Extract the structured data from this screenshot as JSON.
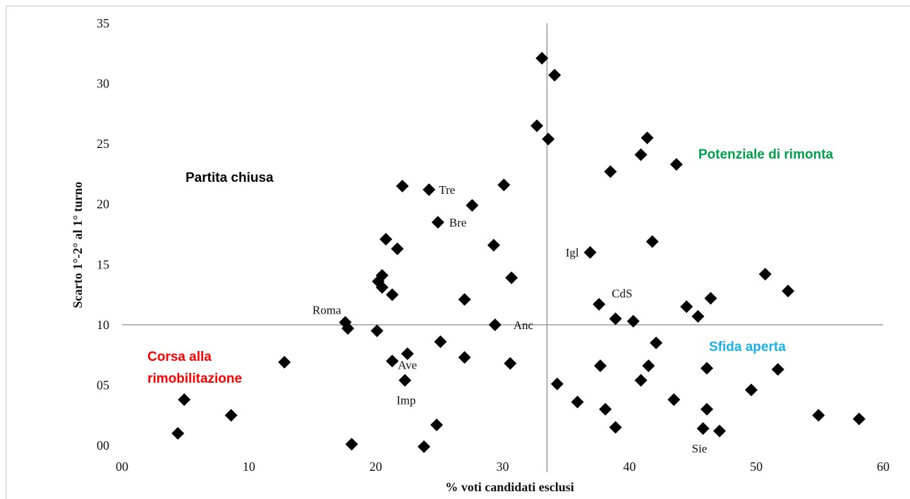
{
  "chart_data": {
    "type": "scatter",
    "xlabel": "% voti candidati esclusi",
    "ylabel": "Scarto 1°-2° al 1° turno",
    "xlim": [
      0,
      60
    ],
    "ylim": [
      0,
      35
    ],
    "x_ticks": [
      "00",
      "10",
      "20",
      "30",
      "40",
      "50",
      "60"
    ],
    "y_ticks": [
      "00",
      "05",
      "10",
      "15",
      "20",
      "25",
      "30",
      "35"
    ],
    "reference_lines": {
      "x": 33.5,
      "y": 10
    },
    "marker": {
      "shape": "diamond",
      "color": "#000000"
    },
    "quadrant_labels": [
      {
        "text": "Partita chiusa",
        "color": "#000000",
        "position": "top-left"
      },
      {
        "text": "Potenziale di rimonta",
        "color": "#00a04a",
        "position": "top-right"
      },
      {
        "text": "Corsa alla",
        "color": "#ff0000",
        "position": "bottom-left"
      },
      {
        "text": "rimobilitazione",
        "color": "#ff0000",
        "position": "bottom-left"
      },
      {
        "text": "Sfida aperta",
        "color": "#1ab0e8",
        "position": "bottom-right"
      }
    ],
    "points": [
      {
        "x": 4.4,
        "y": 1.0
      },
      {
        "x": 4.9,
        "y": 3.8
      },
      {
        "x": 8.6,
        "y": 2.5
      },
      {
        "x": 12.8,
        "y": 6.9
      },
      {
        "x": 17.6,
        "y": 10.2,
        "label": "Roma"
      },
      {
        "x": 17.8,
        "y": 9.7
      },
      {
        "x": 18.1,
        "y": 0.1
      },
      {
        "x": 20.1,
        "y": 9.5
      },
      {
        "x": 20.2,
        "y": 13.6
      },
      {
        "x": 20.5,
        "y": 13.1
      },
      {
        "x": 20.5,
        "y": 14.1
      },
      {
        "x": 20.8,
        "y": 17.1
      },
      {
        "x": 21.3,
        "y": 12.5
      },
      {
        "x": 21.3,
        "y": 7.0
      },
      {
        "x": 21.7,
        "y": 16.3
      },
      {
        "x": 22.1,
        "y": 21.5
      },
      {
        "x": 22.3,
        "y": 5.4,
        "label": "Ave"
      },
      {
        "x": 22.5,
        "y": 7.6
      },
      {
        "x": 23.8,
        "y": -0.1
      },
      {
        "x": 24.2,
        "y": 21.2,
        "label": "Tre"
      },
      {
        "x": 24.8,
        "y": 1.7
      },
      {
        "x": 24.9,
        "y": 18.5,
        "label": "Bre"
      },
      {
        "x": 25.1,
        "y": 8.6
      },
      {
        "x": 27.0,
        "y": 12.1
      },
      {
        "x": 27.0,
        "y": 7.3
      },
      {
        "x": 27.6,
        "y": 19.9
      },
      {
        "x": 29.3,
        "y": 16.6
      },
      {
        "x": 29.4,
        "y": 10.0
      },
      {
        "x": 30.1,
        "y": 21.6
      },
      {
        "x": 30.6,
        "y": 6.8
      },
      {
        "x": 30.7,
        "y": 13.9
      },
      {
        "x": 32.7,
        "y": 26.5
      },
      {
        "x": 33.1,
        "y": 32.1
      },
      {
        "x": 33.6,
        "y": 25.4
      },
      {
        "x": 34.1,
        "y": 30.7
      },
      {
        "x": 34.3,
        "y": 5.1
      },
      {
        "x": 35.9,
        "y": 3.6
      },
      {
        "x": 36.9,
        "y": 16.0,
        "label": "Igl"
      },
      {
        "x": 37.6,
        "y": 11.7
      },
      {
        "x": 37.7,
        "y": 6.6
      },
      {
        "x": 38.1,
        "y": 3.0
      },
      {
        "x": 38.5,
        "y": 22.7
      },
      {
        "x": 38.9,
        "y": 10.5
      },
      {
        "x": 38.9,
        "y": 1.5
      },
      {
        "x": 40.3,
        "y": 10.3
      },
      {
        "x": 40.9,
        "y": 24.1
      },
      {
        "x": 40.9,
        "y": 5.4
      },
      {
        "x": 41.4,
        "y": 25.5
      },
      {
        "x": 41.5,
        "y": 6.6
      },
      {
        "x": 41.8,
        "y": 16.9
      },
      {
        "x": 42.1,
        "y": 8.5
      },
      {
        "x": 43.5,
        "y": 3.8
      },
      {
        "x": 43.7,
        "y": 23.3
      },
      {
        "x": 44.5,
        "y": 11.5
      },
      {
        "x": 45.4,
        "y": 10.7
      },
      {
        "x": 45.8,
        "y": 1.4,
        "label": "Sie"
      },
      {
        "x": 46.1,
        "y": 6.4
      },
      {
        "x": 46.1,
        "y": 3.0
      },
      {
        "x": 46.4,
        "y": 12.2
      },
      {
        "x": 47.1,
        "y": 1.2
      },
      {
        "x": 49.6,
        "y": 4.6
      },
      {
        "x": 50.7,
        "y": 14.2
      },
      {
        "x": 51.7,
        "y": 6.3
      },
      {
        "x": 52.5,
        "y": 12.8
      },
      {
        "x": 54.9,
        "y": 2.5
      },
      {
        "x": 58.1,
        "y": 2.2
      }
    ],
    "extra_labels": [
      {
        "text": "Imp",
        "near_x": 22.3,
        "near_y": 5.4
      },
      {
        "text": "Anc",
        "near_x": 29.4,
        "near_y": 10.0
      },
      {
        "text": "CdS",
        "near_x": 37.6,
        "near_y": 11.7
      }
    ]
  }
}
